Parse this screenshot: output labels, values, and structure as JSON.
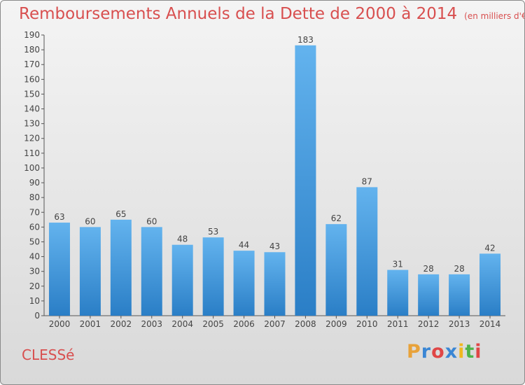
{
  "header": {
    "title": "Remboursements Annuels de la Dette de 2000 à 2014",
    "unit": "(en milliers d'€)"
  },
  "footer": {
    "commune": "CLESSé",
    "logo_text": "Proxiti"
  },
  "colors": {
    "title": "#d84f4f",
    "bar_top": "#63b3ee",
    "bar_bottom": "#2a7ec6"
  },
  "chart_data": {
    "type": "bar",
    "title": "Remboursements Annuels de la Dette de 2000 à 2014",
    "xlabel": "",
    "ylabel": "",
    "categories": [
      "2000",
      "2001",
      "2002",
      "2003",
      "2004",
      "2005",
      "2006",
      "2007",
      "2008",
      "2009",
      "2010",
      "2011",
      "2012",
      "2013",
      "2014"
    ],
    "values": [
      63,
      60,
      65,
      60,
      48,
      53,
      44,
      43,
      183,
      62,
      87,
      31,
      28,
      28,
      42
    ],
    "ylim": [
      0,
      190
    ],
    "yticks": [
      0,
      10,
      20,
      30,
      40,
      50,
      60,
      70,
      80,
      90,
      100,
      110,
      120,
      130,
      140,
      150,
      160,
      170,
      180,
      190
    ],
    "grid": false,
    "legend": "none"
  }
}
